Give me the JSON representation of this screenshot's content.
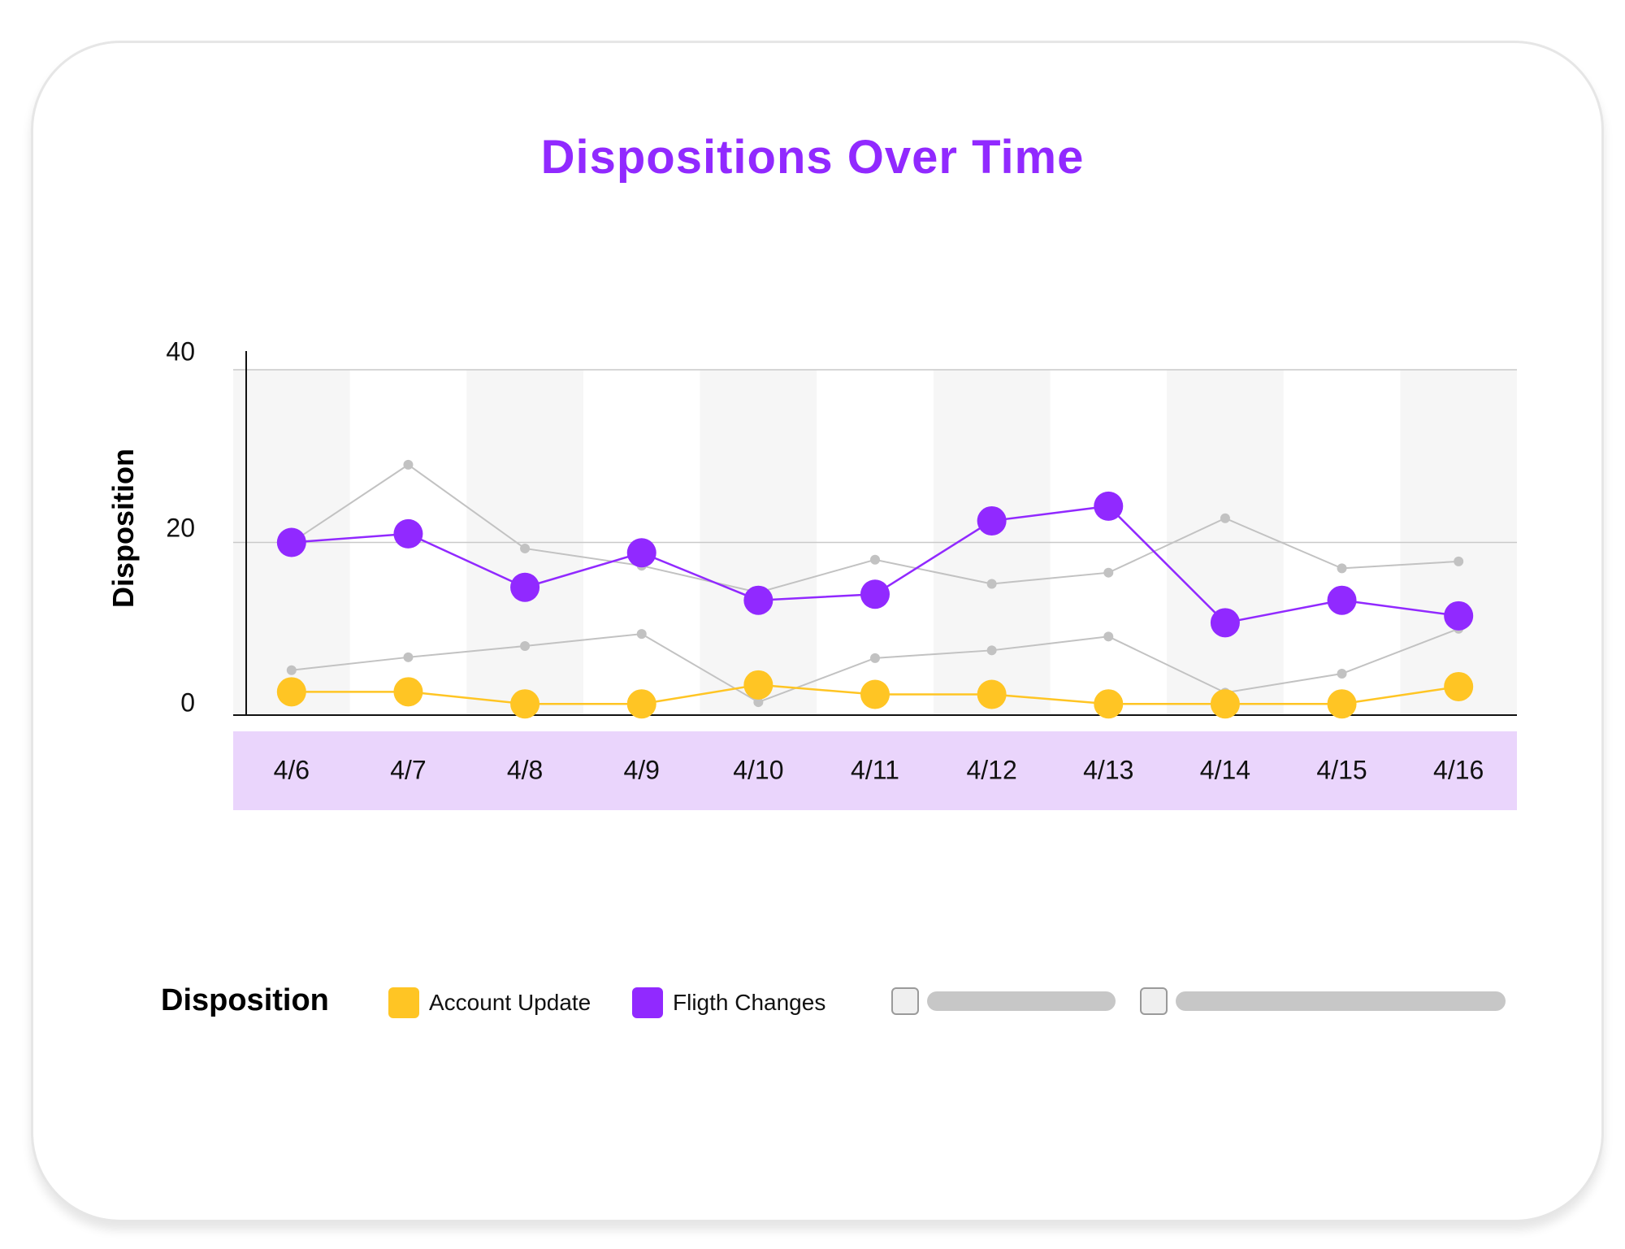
{
  "chart_data": {
    "type": "line",
    "title": "Dispositions Over Time",
    "ylabel": "Disposition",
    "xlabel": "",
    "categories": [
      "4/6",
      "4/7",
      "4/8",
      "4/9",
      "4/10",
      "4/11",
      "4/12",
      "4/13",
      "4/14",
      "4/15",
      "4/16"
    ],
    "ylim": [
      0,
      40
    ],
    "yticks": [
      0,
      20,
      40
    ],
    "series": [
      {
        "name": "Account Update",
        "color": "#FFC524",
        "highlight": true,
        "values": [
          2.7,
          2.7,
          1.3,
          1.3,
          3.5,
          2.4,
          2.4,
          1.3,
          1.3,
          1.3,
          3.3
        ]
      },
      {
        "name": "Fligth Changes",
        "color": "#9129FF",
        "highlight": true,
        "values": [
          20,
          21,
          14.8,
          18.8,
          13.3,
          14,
          22.5,
          24.2,
          10.7,
          13.3,
          11.5
        ]
      },
      {
        "name": "",
        "color": "#c2c2c2",
        "highlight": false,
        "values": [
          20,
          29,
          19.3,
          17.3,
          14.2,
          18,
          15.2,
          16.5,
          22.8,
          17,
          17.8
        ]
      },
      {
        "name": "",
        "color": "#c2c2c2",
        "highlight": false,
        "values": [
          5.2,
          6.7,
          8,
          9.4,
          1.5,
          6.6,
          7.5,
          9.1,
          2.6,
          4.8,
          10
        ]
      }
    ],
    "grid": true,
    "legend_placement": "bottom-left"
  },
  "legend": {
    "title": "Disposition",
    "items": [
      {
        "label": "Account Update",
        "color": "#FFC524"
      },
      {
        "label": "Fligth Changes",
        "color": "#9129FF"
      }
    ]
  },
  "colors": {
    "title": "#9129FF",
    "axis_band": "#EAD5FC",
    "column_shade": "#F6F6F6"
  }
}
